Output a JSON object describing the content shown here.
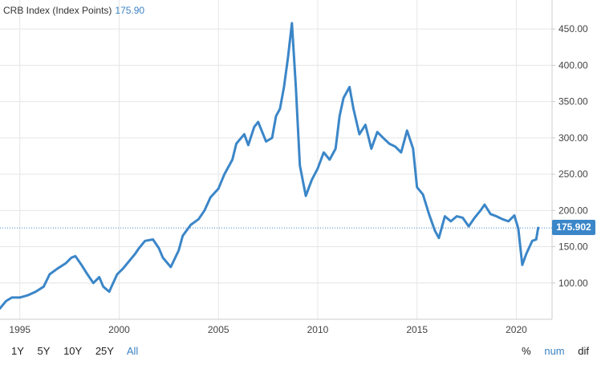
{
  "header": {
    "title": "CRB Index (Index Points)",
    "value": "175.90"
  },
  "ranges": [
    "1Y",
    "5Y",
    "10Y",
    "25Y",
    "All"
  ],
  "active_range": "All",
  "modes": [
    "%",
    "num",
    "dif"
  ],
  "active_mode": "num",
  "colors": {
    "line": "#3b86c8",
    "grid": "#e6e6e6",
    "axis_text": "#444444"
  },
  "chart_data": {
    "type": "line",
    "title": "CRB Index (Index Points)",
    "xlabel": "",
    "ylabel": "",
    "xlim": [
      1994.0,
      2021.8
    ],
    "ylim": [
      50,
      490
    ],
    "y_ticks": [
      100,
      150,
      200,
      250,
      300,
      350,
      400,
      450
    ],
    "y_tick_labels": [
      "100.00",
      "150.00",
      "200.00",
      "250.00",
      "300.00",
      "350.00",
      "400.00",
      "450.00"
    ],
    "x_ticks": [
      1995,
      2000,
      2005,
      2010,
      2015,
      2020
    ],
    "x_tick_labels": [
      "1995",
      "2000",
      "2005",
      "2010",
      "2015",
      "2020"
    ],
    "grid": true,
    "last_value_label": "175.902",
    "last_value": 175.9,
    "series": [
      {
        "x": [
          1994.0,
          1994.3,
          1994.6,
          1995.0,
          1995.4,
          1995.8,
          1996.2,
          1996.5,
          1996.9,
          1997.3,
          1997.6,
          1997.8,
          1998.1,
          1998.4,
          1998.7,
          1999.0,
          1999.2,
          1999.5,
          1999.9,
          2000.2,
          2000.5,
          2000.8,
          2001.0,
          2001.3,
          2001.7,
          2002.0,
          2002.2,
          2002.6,
          2003.0,
          2003.2,
          2003.6,
          2004.0,
          2004.3,
          2004.6,
          2005.0,
          2005.3,
          2005.7,
          2005.9,
          2006.3,
          2006.5,
          2006.8,
          2007.0,
          2007.4,
          2007.7,
          2007.9,
          2008.1,
          2008.3,
          2008.5,
          2008.7,
          2008.9,
          2009.1,
          2009.4,
          2009.7,
          2010.0,
          2010.3,
          2010.6,
          2010.9,
          2011.1,
          2011.3,
          2011.6,
          2011.8,
          2012.1,
          2012.4,
          2012.7,
          2013.0,
          2013.3,
          2013.6,
          2013.9,
          2014.2,
          2014.5,
          2014.8,
          2015.0,
          2015.3,
          2015.6,
          2015.9,
          2016.1,
          2016.4,
          2016.7,
          2017.0,
          2017.3,
          2017.6,
          2017.9,
          2018.2,
          2018.4,
          2018.7,
          2019.0,
          2019.3,
          2019.6,
          2019.9,
          2020.1,
          2020.3,
          2020.5,
          2020.8,
          2021.0,
          2021.1
        ],
        "values": [
          65,
          75,
          80,
          80,
          83,
          88,
          95,
          112,
          120,
          127,
          135,
          137,
          125,
          112,
          100,
          108,
          95,
          88,
          112,
          120,
          130,
          140,
          148,
          158,
          160,
          148,
          135,
          122,
          145,
          165,
          180,
          188,
          200,
          218,
          230,
          250,
          270,
          292,
          305,
          290,
          315,
          322,
          295,
          300,
          330,
          340,
          370,
          410,
          458,
          370,
          262,
          220,
          242,
          258,
          280,
          270,
          285,
          330,
          355,
          370,
          340,
          305,
          318,
          285,
          308,
          300,
          292,
          288,
          280,
          310,
          285,
          232,
          222,
          195,
          172,
          162,
          192,
          185,
          192,
          190,
          178,
          190,
          200,
          208,
          195,
          192,
          188,
          185,
          193,
          175,
          125,
          140,
          158,
          160,
          176
        ]
      }
    ]
  }
}
